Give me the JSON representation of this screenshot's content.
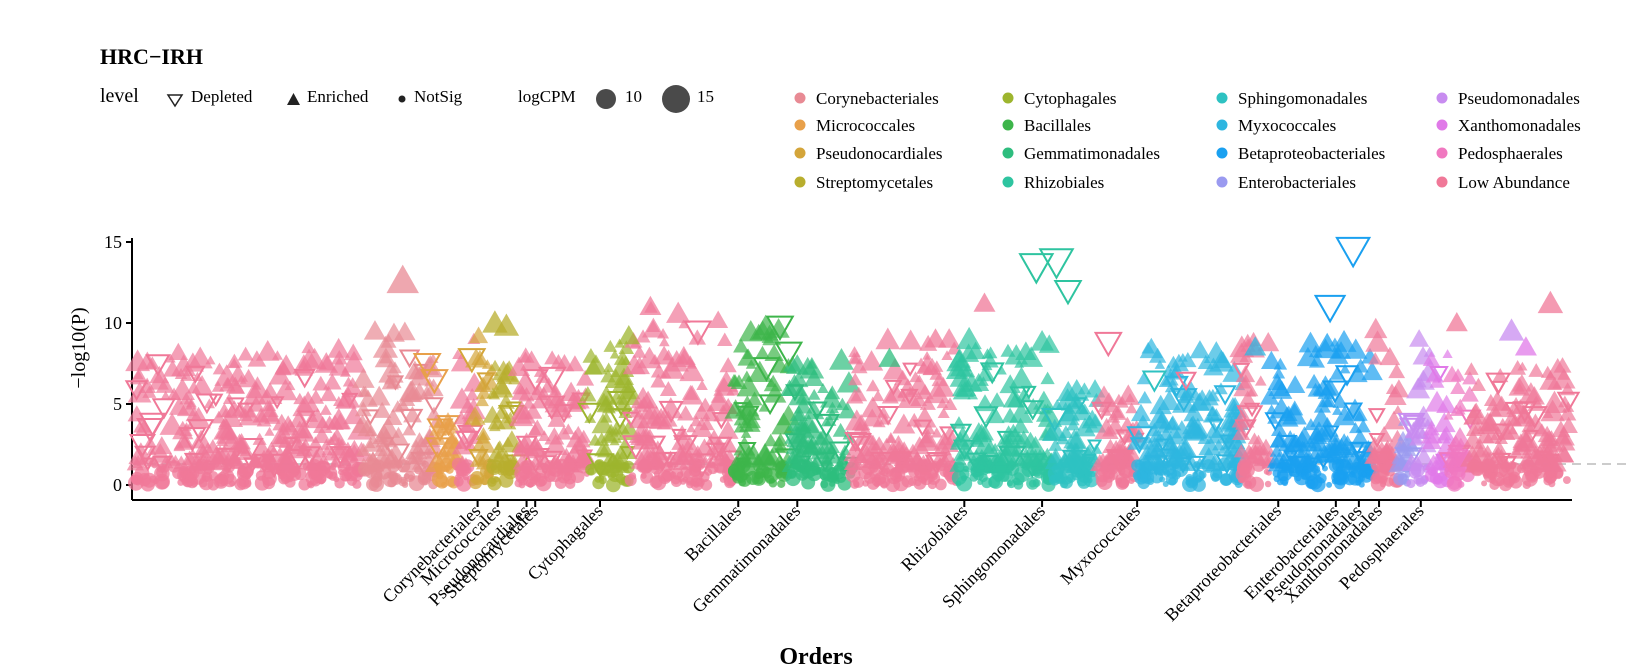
{
  "chart_data": {
    "type": "scatter",
    "subtype": "manhattan",
    "title": "HRC−IRH",
    "xlabel": "Orders",
    "ylabel": "−log10(P)",
    "ylim": [
      0,
      15
    ],
    "yticks": [
      0,
      5,
      10,
      15
    ],
    "significance_threshold": 1.3,
    "grid": false,
    "legend_placement": "top",
    "legend_level": {
      "title": "level",
      "items": [
        {
          "label": "Depleted",
          "shape": "triangle-down-open"
        },
        {
          "label": "Enriched",
          "shape": "triangle-up"
        },
        {
          "label": "NotSig",
          "shape": "circle"
        }
      ]
    },
    "legend_size": {
      "title": "logCPM",
      "items": [
        {
          "label": "10",
          "size": 10
        },
        {
          "label": "15",
          "size": 15
        }
      ]
    },
    "legend_orders": [
      {
        "label": "Corynebacteriales",
        "color": "#E88A94"
      },
      {
        "label": "Micrococcales",
        "color": "#E8A04A"
      },
      {
        "label": "Pseudonocardiales",
        "color": "#D4A53A"
      },
      {
        "label": "Streptomycetales",
        "color": "#B8AE2E"
      },
      {
        "label": "Cytophagales",
        "color": "#9DB52E"
      },
      {
        "label": "Bacillales",
        "color": "#3DB54A"
      },
      {
        "label": "Gemmatimonadales",
        "color": "#2EBD7E"
      },
      {
        "label": "Rhizobiales",
        "color": "#2EC4A0"
      },
      {
        "label": "Sphingomonadales",
        "color": "#2EC2C2"
      },
      {
        "label": "Myxococcales",
        "color": "#2EB6E0"
      },
      {
        "label": "Betaproteobacteriales",
        "color": "#1AA0F0"
      },
      {
        "label": "Enterobacteriales",
        "color": "#9A9AF0"
      },
      {
        "label": "Pseudomonadales",
        "color": "#C88CF0"
      },
      {
        "label": "Xanthomonadales",
        "color": "#E07AE8"
      },
      {
        "label": "Pedosphaerales",
        "color": "#F078C0"
      },
      {
        "label": "Low Abundance",
        "color": "#F07898"
      }
    ],
    "x_tick_labels": [
      "Corynebacteriales",
      "Micrococcales",
      "Pseudonocardiales",
      "Streptomycetales",
      "Cytophagales",
      "Bacillales",
      "Gemmatimonadales",
      "Rhizobiales",
      "Sphingomonadales",
      "Myxococcales",
      "Betaproteobacteriales",
      "Enterobacteriales",
      "Pseudomonadales",
      "Xanthomonadales",
      "Pedosphaerales"
    ],
    "x_tick_positions": [
      240,
      254,
      274,
      280,
      325,
      421,
      462,
      578,
      632,
      698,
      796,
      836,
      852,
      866,
      895
    ],
    "x_range": [
      0,
      1000
    ],
    "points": [
      {
        "x": 18,
        "y": 7.5,
        "order": "Low Abundance",
        "level": "Depleted",
        "logCPM": 12
      },
      {
        "x": 72,
        "y": 5.0,
        "order": "Low Abundance",
        "level": "Depleted",
        "logCPM": 10
      },
      {
        "x": 188,
        "y": 12.6,
        "order": "Corynebacteriales",
        "level": "Enriched",
        "logCPM": 15
      },
      {
        "x": 205,
        "y": 7.5,
        "order": "Micrococcales",
        "level": "Depleted",
        "logCPM": 13
      },
      {
        "x": 210,
        "y": 6.5,
        "order": "Micrococcales",
        "level": "Depleted",
        "logCPM": 13
      },
      {
        "x": 236,
        "y": 7.8,
        "order": "Pseudonocardiales",
        "level": "Depleted",
        "logCPM": 13
      },
      {
        "x": 252,
        "y": 10.0,
        "order": "Streptomycetales",
        "level": "Enriched",
        "logCPM": 13
      },
      {
        "x": 260,
        "y": 9.8,
        "order": "Streptomycetales",
        "level": "Enriched",
        "logCPM": 13
      },
      {
        "x": 300,
        "y": 4.5,
        "order": "Low Abundance",
        "level": "Depleted",
        "logCPM": 11
      },
      {
        "x": 345,
        "y": 9.2,
        "order": "Cytophagales",
        "level": "Enriched",
        "logCPM": 12
      },
      {
        "x": 336,
        "y": 6.5,
        "order": "Cytophagales",
        "level": "Enriched",
        "logCPM": 12
      },
      {
        "x": 360,
        "y": 11.0,
        "order": "Low Abundance",
        "level": "Enriched",
        "logCPM": 12
      },
      {
        "x": 393,
        "y": 9.5,
        "order": "Low Abundance",
        "level": "Depleted",
        "logCPM": 13
      },
      {
        "x": 450,
        "y": 9.8,
        "order": "Bacillales",
        "level": "Depleted",
        "logCPM": 13
      },
      {
        "x": 456,
        "y": 8.2,
        "order": "Bacillales",
        "level": "Depleted",
        "logCPM": 13
      },
      {
        "x": 526,
        "y": 7.8,
        "order": "Gemmatimonadales",
        "level": "Enriched",
        "logCPM": 12
      },
      {
        "x": 558,
        "y": 9.0,
        "order": "Low Abundance",
        "level": "Enriched",
        "logCPM": 12
      },
      {
        "x": 592,
        "y": 11.2,
        "order": "Low Abundance",
        "level": "Enriched",
        "logCPM": 12
      },
      {
        "x": 628,
        "y": 13.5,
        "order": "Rhizobiales",
        "level": "Depleted",
        "logCPM": 15
      },
      {
        "x": 642,
        "y": 13.8,
        "order": "Rhizobiales",
        "level": "Depleted",
        "logCPM": 15
      },
      {
        "x": 650,
        "y": 12.0,
        "order": "Rhizobiales",
        "level": "Depleted",
        "logCPM": 13
      },
      {
        "x": 678,
        "y": 8.8,
        "order": "Low Abundance",
        "level": "Depleted",
        "logCPM": 13
      },
      {
        "x": 710,
        "y": 6.5,
        "order": "Sphingomonadales",
        "level": "Depleted",
        "logCPM": 12
      },
      {
        "x": 732,
        "y": 6.5,
        "order": "Low Abundance",
        "level": "Depleted",
        "logCPM": 11
      },
      {
        "x": 780,
        "y": 8.5,
        "order": "Myxococcales",
        "level": "Enriched",
        "logCPM": 12
      },
      {
        "x": 848,
        "y": 14.5,
        "order": "Betaproteobacteriales",
        "level": "Depleted",
        "logCPM": 15
      },
      {
        "x": 832,
        "y": 11.0,
        "order": "Betaproteobacteriales",
        "level": "Depleted",
        "logCPM": 14
      },
      {
        "x": 830,
        "y": 8.5,
        "order": "Betaproteobacteriales",
        "level": "Enriched",
        "logCPM": 14
      },
      {
        "x": 920,
        "y": 10.0,
        "order": "Low Abundance",
        "level": "Enriched",
        "logCPM": 12
      },
      {
        "x": 958,
        "y": 9.5,
        "order": "Pseudomonadales",
        "level": "Enriched",
        "logCPM": 13
      },
      {
        "x": 968,
        "y": 8.5,
        "order": "Xanthomonadales",
        "level": "Enriched",
        "logCPM": 12
      },
      {
        "x": 985,
        "y": 11.2,
        "order": "Low Abundance",
        "level": "Enriched",
        "logCPM": 13
      }
    ],
    "background_segments": [
      {
        "order": "Low Abundance",
        "x": [
          2,
          160
        ],
        "enriched_max": 8.5
      },
      {
        "order": "Corynebacteriales",
        "x": [
          160,
          212
        ],
        "enriched_max": 9.5
      },
      {
        "order": "Micrococcales",
        "x": [
          212,
          226
        ],
        "enriched_max": 4.0
      },
      {
        "order": "Low Abundance",
        "x": [
          226,
          238
        ],
        "enriched_max": 10.0
      },
      {
        "order": "Pseudonocardiales",
        "x": [
          238,
          250
        ],
        "enriched_max": 9.5
      },
      {
        "order": "Streptomycetales",
        "x": [
          250,
          268
        ],
        "enriched_max": 8.5
      },
      {
        "order": "Low Abundance",
        "x": [
          268,
          316
        ],
        "enriched_max": 8.0
      },
      {
        "order": "Cytophagales",
        "x": [
          316,
          346
        ],
        "enriched_max": 9.0
      },
      {
        "order": "Low Abundance",
        "x": [
          346,
          418
        ],
        "enriched_max": 11.0
      },
      {
        "order": "Bacillales",
        "x": [
          418,
          456
        ],
        "enriched_max": 10.0
      },
      {
        "order": "Gemmatimonadales",
        "x": [
          456,
          500
        ],
        "enriched_max": 8.0
      },
      {
        "order": "Low Abundance",
        "x": [
          500,
          572
        ],
        "enriched_max": 9.0
      },
      {
        "order": "Rhizobiales",
        "x": [
          572,
          640
        ],
        "enriched_max": 9.0
      },
      {
        "order": "Sphingomonadales",
        "x": [
          640,
          672
        ],
        "enriched_max": 6.0
      },
      {
        "order": "Low Abundance",
        "x": [
          672,
          698
        ],
        "enriched_max": 5.5
      },
      {
        "order": "Myxococcales",
        "x": [
          698,
          770
        ],
        "enriched_max": 8.5
      },
      {
        "order": "Low Abundance",
        "x": [
          770,
          790
        ],
        "enriched_max": 9.5
      },
      {
        "order": "Betaproteobacteriales",
        "x": [
          790,
          862
        ],
        "enriched_max": 9.0
      },
      {
        "order": "Low Abundance",
        "x": [
          862,
          880
        ],
        "enriched_max": 10.0
      },
      {
        "order": "Enterobacteriales",
        "x": [
          880,
          888
        ],
        "enriched_max": 4.0
      },
      {
        "order": "Pseudomonadales",
        "x": [
          888,
          902
        ],
        "enriched_max": 9.5
      },
      {
        "order": "Xanthomonadales",
        "x": [
          902,
          914
        ],
        "enriched_max": 8.5
      },
      {
        "order": "Pedosphaerales",
        "x": [
          914,
          930
        ],
        "enriched_max": 7.0
      },
      {
        "order": "Low Abundance",
        "x": [
          930,
          998
        ],
        "enriched_max": 7.5
      }
    ]
  }
}
